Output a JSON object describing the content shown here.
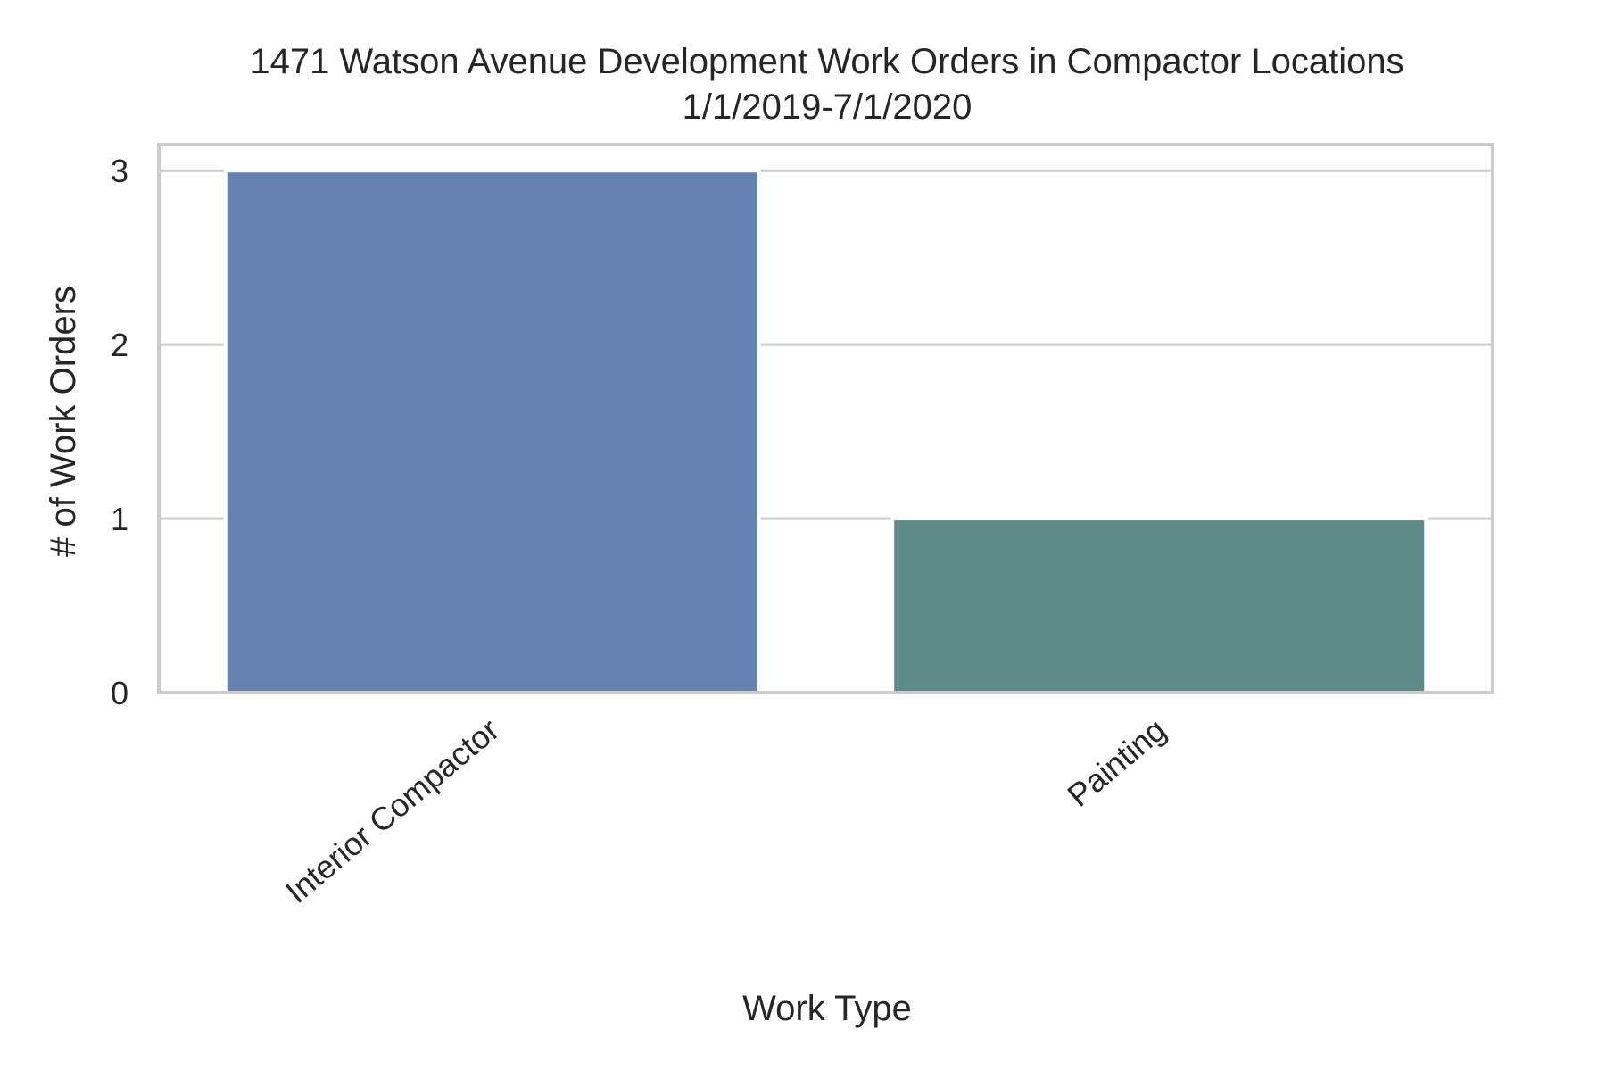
{
  "chart_data": {
    "type": "bar",
    "title": "1471 Watson Avenue Development Work Orders in Compactor Locations",
    "subtitle": "1/1/2019-7/1/2020",
    "xlabel": "Work Type",
    "ylabel": "# of Work Orders",
    "categories": [
      "Interior Compactor",
      "Painting"
    ],
    "values": [
      3,
      1
    ],
    "colors": [
      "#6581b1",
      "#5e8a87"
    ],
    "ylim": [
      0,
      3.15
    ],
    "yticks": [
      "0",
      "1",
      "2",
      "3"
    ],
    "grid": true,
    "legend": "none"
  }
}
